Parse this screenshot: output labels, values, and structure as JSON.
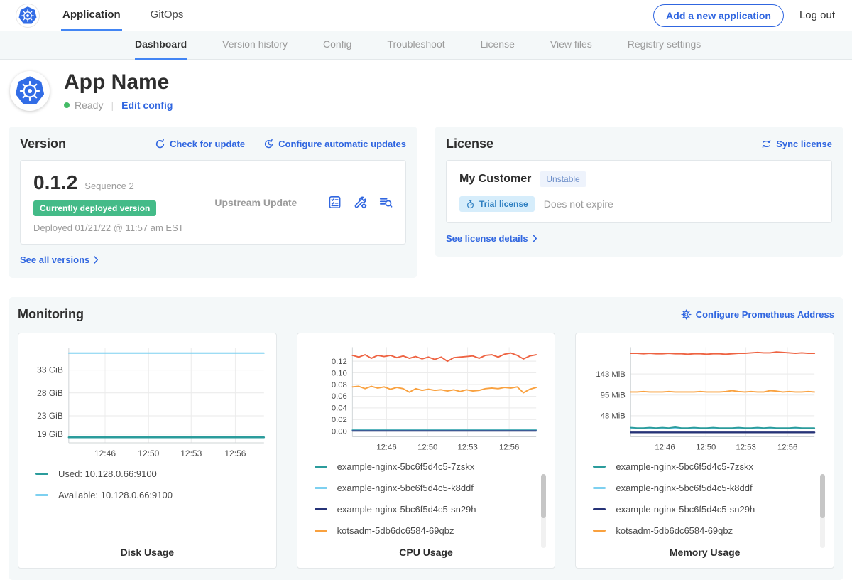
{
  "topbar": {
    "tabs": [
      {
        "label": "Application",
        "active": true
      },
      {
        "label": "GitOps",
        "active": false
      }
    ],
    "add_app_button": "Add a new application",
    "logout_label": "Log out"
  },
  "subnav": {
    "tabs": [
      {
        "label": "Dashboard",
        "active": true
      },
      {
        "label": "Version history",
        "active": false
      },
      {
        "label": "Config",
        "active": false
      },
      {
        "label": "Troubleshoot",
        "active": false
      },
      {
        "label": "License",
        "active": false
      },
      {
        "label": "View files",
        "active": false
      },
      {
        "label": "Registry settings",
        "active": false
      }
    ]
  },
  "hero": {
    "app_name": "App Name",
    "status": "Ready",
    "edit_config_label": "Edit config"
  },
  "version_card": {
    "title": "Version",
    "check_for_update": "Check for update",
    "configure_auto_updates": "Configure automatic updates",
    "version": "0.1.2",
    "sequence": "Sequence 2",
    "deployed_badge": "Currently deployed version",
    "deployed_at": "Deployed 01/21/22 @ 11:57 am EST",
    "source": "Upstream Update",
    "action_icons": [
      "preflight-checks-icon",
      "config-values-icon",
      "deploy-logs-icon"
    ],
    "see_all_label": "See all versions"
  },
  "license_card": {
    "title": "License",
    "sync_label": "Sync license",
    "customer": "My Customer",
    "channel_badge": "Unstable",
    "type_badge": "Trial license",
    "expiry": "Does not expire",
    "details_label": "See license details"
  },
  "monitoring": {
    "title": "Monitoring",
    "configure_link": "Configure Prometheus Address"
  },
  "colors": {
    "link_blue": "#3066e0",
    "active_tab_underline": "#4285f4",
    "status_green": "#44bb66",
    "deployed_badge_green": "#44bb88",
    "card_bg": "#f4f8f9",
    "series_teal": "#2b9c9c",
    "series_light_blue": "#7dd0f0",
    "series_navy": "#263377",
    "series_orange": "#f9a13f",
    "series_red_orange": "#ee6342"
  },
  "chart_data": [
    {
      "type": "line",
      "title": "Disk Usage",
      "xlabel": "",
      "ylabel": "",
      "grid": true,
      "legend_position": "bottom-left",
      "x_ticks": [
        {
          "label": "12:46",
          "pos": 0.186
        },
        {
          "label": "12:50",
          "pos": 0.409
        },
        {
          "label": "12:53",
          "pos": 0.627
        },
        {
          "label": "12:56",
          "pos": 0.853
        }
      ],
      "y_ticks": [
        {
          "label": "19 GiB",
          "value": 19
        },
        {
          "label": "23 GiB",
          "value": 23
        },
        {
          "label": "28 GiB",
          "value": 28
        },
        {
          "label": "33 GiB",
          "value": 33
        }
      ],
      "ylim": [
        17.1,
        37.9
      ],
      "series": [
        {
          "name": "Used: 10.128.0.66:9100",
          "color": "#2b9c9c",
          "width": 2.5,
          "in_legend": true,
          "values": [
            18.3,
            18.3
          ]
        },
        {
          "name": "Available: 10.128.0.66:9100",
          "color": "#7dd0f0",
          "width": 2,
          "in_legend": true,
          "values": [
            36.7,
            36.7
          ]
        }
      ],
      "scrollbar": false
    },
    {
      "type": "line",
      "title": "CPU Usage",
      "xlabel": "",
      "ylabel": "",
      "grid": true,
      "legend_position": "bottom-left",
      "x_ticks": [
        {
          "label": "12:46",
          "pos": 0.186
        },
        {
          "label": "12:50",
          "pos": 0.409
        },
        {
          "label": "12:53",
          "pos": 0.627
        },
        {
          "label": "12:56",
          "pos": 0.853
        }
      ],
      "y_ticks": [
        {
          "label": "0.00",
          "value": 0.0
        },
        {
          "label": "0.02",
          "value": 0.02
        },
        {
          "label": "0.04",
          "value": 0.04
        },
        {
          "label": "0.06",
          "value": 0.06
        },
        {
          "label": "0.08",
          "value": 0.08
        },
        {
          "label": "0.10",
          "value": 0.1
        },
        {
          "label": "0.12",
          "value": 0.12
        }
      ],
      "ylim": [
        -0.0095,
        0.144
      ],
      "series": [
        {
          "name": "example-nginx-5bc6f5d4c5-7zskx",
          "color": "#2b9c9c",
          "width": 2,
          "in_legend": true,
          "values": [
            0.002,
            0.002
          ]
        },
        {
          "name": "example-nginx-5bc6f5d4c5-k8ddf",
          "color": "#7dd0f0",
          "width": 2,
          "in_legend": true,
          "values": [
            0.0013,
            0.0013
          ]
        },
        {
          "name": "example-nginx-5bc6f5d4c5-sn29h",
          "color": "#263377",
          "width": 2,
          "in_legend": true,
          "values": [
            0.0006,
            0.0006
          ]
        },
        {
          "name": "kotsadm-5db6dc6584-69qbz",
          "color": "#f9a13f",
          "width": 2,
          "in_legend": true,
          "values": [
            0.076,
            0.077,
            0.073,
            0.077,
            0.074,
            0.076,
            0.072,
            0.075,
            0.073,
            0.067,
            0.073,
            0.07,
            0.072,
            0.07,
            0.071,
            0.069,
            0.071,
            0.068,
            0.071,
            0.069,
            0.07,
            0.073,
            0.074,
            0.073,
            0.075,
            0.074,
            0.076,
            0.066,
            0.072,
            0.075
          ]
        },
        {
          "name": "",
          "color": "#ee6342",
          "width": 2,
          "in_legend": false,
          "values": [
            0.13,
            0.127,
            0.131,
            0.125,
            0.13,
            0.128,
            0.13,
            0.126,
            0.129,
            0.125,
            0.128,
            0.124,
            0.127,
            0.123,
            0.127,
            0.12,
            0.126,
            0.127,
            0.128,
            0.129,
            0.125,
            0.13,
            0.131,
            0.127,
            0.132,
            0.134,
            0.13,
            0.124,
            0.129,
            0.131
          ]
        }
      ],
      "scrollbar": true
    },
    {
      "type": "line",
      "title": "Memory Usage",
      "xlabel": "",
      "ylabel": "",
      "grid": true,
      "legend_position": "bottom-left",
      "x_ticks": [
        {
          "label": "12:46",
          "pos": 0.186
        },
        {
          "label": "12:50",
          "pos": 0.409
        },
        {
          "label": "12:53",
          "pos": 0.627
        },
        {
          "label": "12:56",
          "pos": 0.853
        }
      ],
      "y_ticks": [
        {
          "label": "48 MiB",
          "value": 48
        },
        {
          "label": "95 MiB",
          "value": 95
        },
        {
          "label": "143 MiB",
          "value": 143
        }
      ],
      "ylim": [
        0,
        204
      ],
      "series": [
        {
          "name": "example-nginx-5bc6f5d4c5-k8ddf",
          "color": "#7dd0f0",
          "width": 2,
          "in_legend": false,
          "values": [
            19,
            19
          ]
        },
        {
          "name": "example-nginx-5bc6f5d4c5-7zskx",
          "color": "#2b9c9c",
          "width": 2,
          "in_legend": true,
          "values": [
            21,
            20,
            20,
            21,
            20,
            21,
            20,
            22,
            20,
            20,
            21,
            20,
            20,
            21,
            20,
            20,
            20,
            21,
            20,
            20,
            21,
            20,
            21,
            20,
            20,
            20,
            21,
            20,
            20,
            20
          ]
        },
        {
          "name": "example-nginx-5bc6f5d4c5-k8ddf",
          "color": "#7dd0f0",
          "width": 0,
          "in_legend": true,
          "values": [
            19,
            19
          ]
        },
        {
          "name": "example-nginx-5bc6f5d4c5-sn29h",
          "color": "#263377",
          "width": 2.5,
          "in_legend": true,
          "values": [
            10,
            10
          ]
        },
        {
          "name": "kotsadm-5db6dc6584-69qbz",
          "color": "#f9a13f",
          "width": 2,
          "in_legend": true,
          "values": [
            102,
            102,
            103,
            102,
            102,
            102,
            103,
            102,
            102,
            102,
            102,
            103,
            102,
            102,
            102,
            103,
            105,
            103,
            102,
            103,
            102,
            102,
            105,
            104,
            102,
            103,
            102,
            102,
            103,
            102
          ]
        },
        {
          "name": "",
          "color": "#ee6342",
          "width": 2,
          "in_legend": false,
          "values": [
            190,
            190,
            189,
            190,
            189,
            189,
            190,
            189,
            189,
            188,
            189,
            189,
            188,
            189,
            189,
            188,
            189,
            190,
            190,
            191,
            192,
            191,
            191,
            193,
            192,
            191,
            190,
            191,
            190,
            190
          ]
        }
      ],
      "scrollbar": true
    }
  ]
}
